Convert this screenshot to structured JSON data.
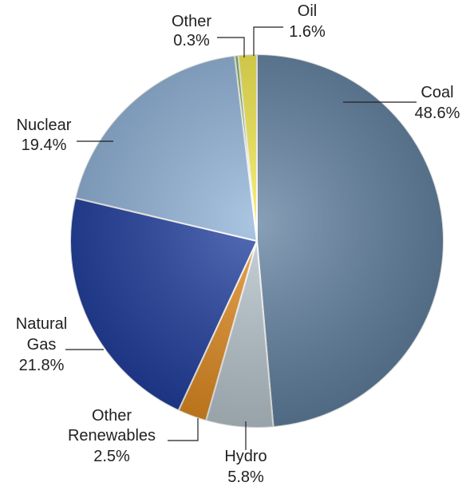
{
  "chart_data": {
    "type": "pie",
    "categories": [
      "Coal",
      "Hydro",
      "Other Renewables",
      "Natural Gas",
      "Nuclear",
      "Other",
      "Oil"
    ],
    "values": [
      48.6,
      5.8,
      2.5,
      21.8,
      19.4,
      0.3,
      1.6
    ],
    "value_labels": [
      "48.6%",
      "5.8%",
      "2.5%",
      "21.8%",
      "19.4%",
      "0.3%",
      "1.6%"
    ],
    "colors": [
      "#5f7f9f",
      "#b9c7cf",
      "#e38b1e",
      "#1d3c9e",
      "#8fb3d9",
      "#7cb342",
      "#f4ea4a"
    ]
  }
}
